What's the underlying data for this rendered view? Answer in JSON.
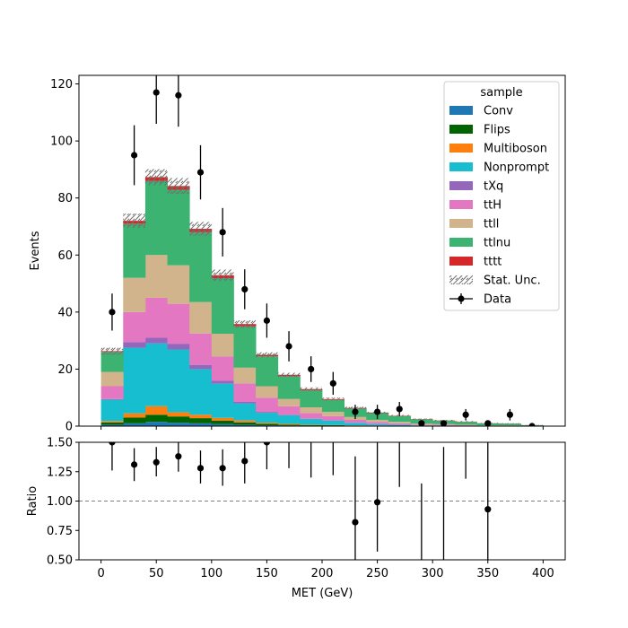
{
  "chart_data": [
    {
      "type": "bar",
      "stacked": true,
      "histtype": "stepfilled",
      "xlabel": "",
      "ylabel": "Events",
      "xlim": [
        -20,
        420
      ],
      "ylim": [
        0,
        123
      ],
      "yticks": [
        0,
        20,
        40,
        60,
        80,
        100,
        120
      ],
      "bin_edges": [
        0,
        20,
        40,
        60,
        80,
        100,
        120,
        140,
        160,
        180,
        200,
        220,
        240,
        260,
        280,
        300,
        320,
        340,
        360,
        380,
        400
      ],
      "series": [
        {
          "name": "Conv",
          "color": "#1f77b4",
          "values": [
            0.5,
            1.0,
            1.5,
            1.2,
            1.0,
            0.7,
            0.5,
            0.3,
            0.2,
            0.1,
            0.1,
            0.05,
            0.05,
            0,
            0,
            0,
            0,
            0,
            0,
            0
          ]
        },
        {
          "name": "Flips",
          "color": "#006400",
          "values": [
            0.8,
            2.0,
            2.5,
            2.2,
            1.8,
            1.2,
            0.8,
            0.5,
            0.3,
            0.2,
            0.2,
            0.1,
            0.1,
            0.05,
            0.05,
            0,
            0,
            0,
            0,
            0
          ]
        },
        {
          "name": "Multiboson",
          "color": "#ff7f0e",
          "values": [
            0.5,
            1.5,
            3.0,
            1.5,
            1.2,
            1.0,
            0.7,
            0.4,
            0.3,
            0.2,
            0.1,
            0.1,
            0.05,
            0.05,
            0,
            0,
            0,
            0,
            0,
            0
          ]
        },
        {
          "name": "Nonprompt",
          "color": "#17becf",
          "values": [
            7.5,
            23.0,
            22.0,
            22.0,
            16.0,
            12.0,
            6.0,
            3.5,
            3.0,
            2.0,
            1.5,
            0.9,
            0.5,
            0.4,
            0.2,
            0.2,
            0.1,
            0.05,
            0.05,
            0
          ]
        },
        {
          "name": "tXq",
          "color": "#9467bd",
          "values": [
            0.2,
            2.0,
            2.0,
            2.0,
            1.5,
            1.0,
            0.5,
            0.3,
            0.2,
            0.1,
            0.1,
            0.05,
            0.05,
            0,
            0,
            0,
            0,
            0,
            0,
            0
          ]
        },
        {
          "name": "ttH",
          "color": "#e377c2",
          "values": [
            4.5,
            10.5,
            14.0,
            14.0,
            11.0,
            8.5,
            6.5,
            5.0,
            3.0,
            2.0,
            1.5,
            1.0,
            0.7,
            0.5,
            0.3,
            0.3,
            0.2,
            0.1,
            0.1,
            0.05
          ]
        },
        {
          "name": "ttll",
          "color": "#d2b48c",
          "values": [
            5.0,
            12.0,
            15.0,
            13.5,
            11.0,
            8.0,
            5.5,
            4.0,
            2.5,
            2.0,
            1.5,
            1.0,
            0.7,
            0.5,
            0.3,
            0.2,
            0.2,
            0.1,
            0.1,
            0.05
          ]
        },
        {
          "name": "ttlnu",
          "color": "#3cb371",
          "values": [
            7.0,
            19.0,
            26.0,
            26.5,
            24.5,
            19.5,
            14.5,
            10.5,
            8.0,
            6.0,
            4.2,
            3.0,
            2.4,
            2.0,
            1.5,
            1.2,
            1.0,
            0.7,
            0.6,
            0.2
          ]
        },
        {
          "name": "tttt",
          "color": "#d62728",
          "values": [
            0.3,
            1.0,
            1.3,
            1.3,
            1.2,
            1.0,
            0.8,
            0.5,
            0.5,
            0.4,
            0.3,
            0.2,
            0.2,
            0.15,
            0.1,
            0.1,
            0.1,
            0.05,
            0.05,
            0.03
          ]
        }
      ],
      "stat_unc": {
        "name": "Stat. Unc.",
        "values": [
          1.2,
          2.5,
          2.8,
          2.8,
          2.4,
          2.0,
          1.3,
          0.9,
          0.7,
          0.6,
          0.5,
          0.4,
          0.3,
          0.3,
          0.2,
          0.2,
          0.2,
          0.15,
          0.15,
          0.1
        ]
      },
      "data": {
        "name": "Data",
        "x": [
          10,
          30,
          50,
          70,
          90,
          110,
          130,
          150,
          170,
          190,
          210,
          230,
          250,
          270,
          290,
          310,
          330,
          350,
          370,
          390
        ],
        "y": [
          40,
          95,
          117,
          116,
          89,
          68,
          48,
          37,
          28,
          20,
          15,
          5,
          5,
          6,
          1,
          1,
          4,
          1,
          4,
          0
        ],
        "yerr": [
          6.5,
          10.5,
          11.0,
          11.0,
          9.5,
          8.5,
          7.0,
          6.0,
          5.3,
          4.5,
          4.0,
          2.5,
          2.5,
          2.5,
          1.0,
          1.0,
          2.0,
          1.0,
          2.0,
          1.0
        ]
      },
      "legend": {
        "title": "sample",
        "placement": "top-right"
      }
    },
    {
      "type": "scatter",
      "xlabel": "MET (GeV)",
      "ylabel": "Ratio",
      "xlim": [
        -20,
        420
      ],
      "ylim": [
        0.5,
        1.5
      ],
      "xticks": [
        0,
        50,
        100,
        150,
        200,
        250,
        300,
        350,
        400
      ],
      "yticks": [
        "0.50",
        "0.75",
        "1.00",
        "1.25",
        "1.50"
      ],
      "reference_line": 1.0,
      "points": [
        {
          "x": 10,
          "y": 1.5,
          "lo": 1.26,
          "hi": 1.5
        },
        {
          "x": 30,
          "y": 1.31,
          "lo": 1.17,
          "hi": 1.45
        },
        {
          "x": 50,
          "y": 1.33,
          "lo": 1.21,
          "hi": 1.46
        },
        {
          "x": 70,
          "y": 1.38,
          "lo": 1.25,
          "hi": 1.5
        },
        {
          "x": 90,
          "y": 1.28,
          "lo": 1.15,
          "hi": 1.43
        },
        {
          "x": 110,
          "y": 1.28,
          "lo": 1.13,
          "hi": 1.44
        },
        {
          "x": 130,
          "y": 1.34,
          "lo": 1.15,
          "hi": 1.5
        },
        {
          "x": 150,
          "y": 1.5,
          "lo": 1.27,
          "hi": 1.5
        },
        {
          "x": 170,
          "y": null,
          "lo": 1.28,
          "hi": 1.5
        },
        {
          "x": 190,
          "y": null,
          "lo": 1.2,
          "hi": 1.5
        },
        {
          "x": 210,
          "y": null,
          "lo": 1.22,
          "hi": 1.5
        },
        {
          "x": 230,
          "y": 0.82,
          "lo": 0.5,
          "hi": 1.38
        },
        {
          "x": 250,
          "y": 0.99,
          "lo": 0.57,
          "hi": 1.5
        },
        {
          "x": 270,
          "y": null,
          "lo": 1.12,
          "hi": 1.5
        },
        {
          "x": 290,
          "y": null,
          "lo": 0.5,
          "hi": 1.15
        },
        {
          "x": 310,
          "y": null,
          "lo": 0.5,
          "hi": 1.46
        },
        {
          "x": 330,
          "y": null,
          "lo": 1.19,
          "hi": 1.5
        },
        {
          "x": 350,
          "y": 0.93,
          "lo": 0.5,
          "hi": 1.5
        }
      ]
    }
  ]
}
